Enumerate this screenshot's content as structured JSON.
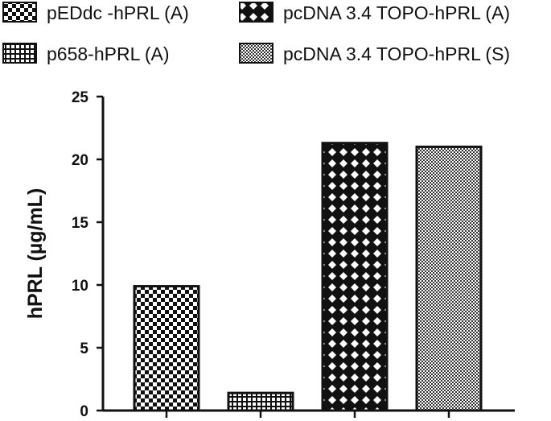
{
  "chart_data": {
    "type": "bar",
    "title": "",
    "xlabel": "",
    "ylabel": "hPRL (µg/mL)",
    "ylim": [
      0,
      25
    ],
    "yticks": [
      0,
      5,
      10,
      15,
      20,
      25
    ],
    "grid": false,
    "legend_position": "top",
    "series": [
      {
        "name": "pEDdc -hPRL (A)",
        "value": 9.9,
        "pattern": "checker"
      },
      {
        "name": "p658-hPRL (A)",
        "value": 1.4,
        "pattern": "grid"
      },
      {
        "name": "pcDNA 3.4 TOPO-hPRL (A)",
        "value": 21.3,
        "pattern": "diamond"
      },
      {
        "name": "pcDNA 3.4 TOPO-hPRL (S)",
        "value": 21.0,
        "pattern": "fine-dots"
      }
    ]
  }
}
